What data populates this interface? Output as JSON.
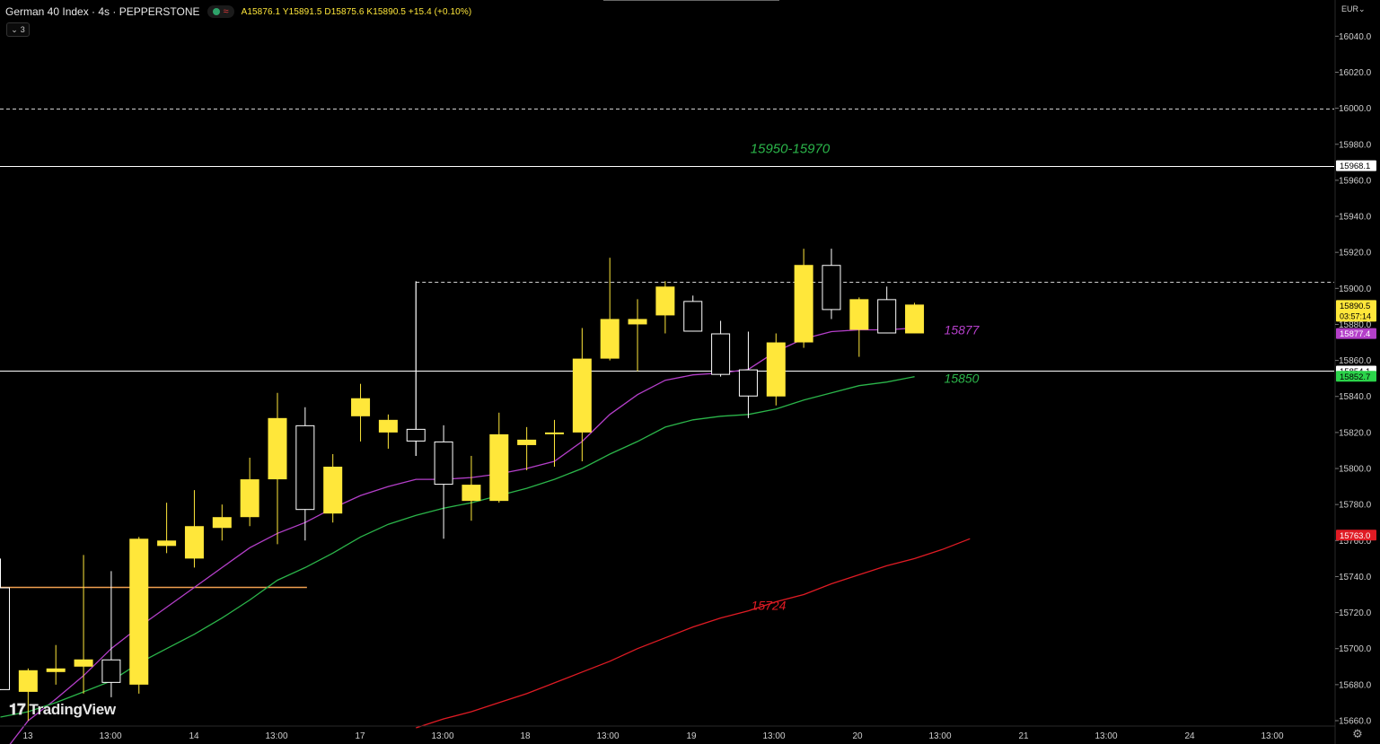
{
  "header": {
    "symbol": "German 40 Index · 4s · PEPPERSTONE",
    "ohlc": "A15876.1  Y15891.5  D15875.6  K15890.5  +15.4 (+0.10%)",
    "indicator_toggle": "3"
  },
  "currency": "EUR",
  "brand": "TradingView",
  "colors": {
    "background": "#000000",
    "bull": "#ffe73a",
    "bear_outline": "#ffffff",
    "ema_short": "#b43fc9",
    "ema_mid": "#2bb54a",
    "ema_long": "#e01b24",
    "level_line": "#ffffff",
    "orange_line": "#f0a050"
  },
  "chart_data": {
    "type": "candlestick",
    "y_axis": {
      "ticks": [
        15660,
        15680,
        15700,
        15720,
        15740,
        15760,
        15780,
        15800,
        15820,
        15840,
        15860,
        15880,
        15900,
        15920,
        15940,
        15960,
        15980,
        16000,
        16020,
        16040
      ],
      "ylim": [
        15656,
        16060
      ]
    },
    "x_axis": {
      "tick_labels": [
        "13",
        "13:00",
        "14",
        "13:00",
        "17",
        "13:00",
        "18",
        "13:00",
        "19",
        "13:00",
        "20",
        "13:00",
        "21",
        "13:00",
        "24",
        "13:00"
      ]
    },
    "candles": [
      {
        "o": 15734,
        "h": 15750,
        "l": 15677,
        "c": 15677
      },
      {
        "o": 15676,
        "h": 15689,
        "l": 15660,
        "c": 15688
      },
      {
        "o": 15687,
        "h": 15702,
        "l": 15680,
        "c": 15689
      },
      {
        "o": 15690,
        "h": 15752,
        "l": 15675,
        "c": 15694
      },
      {
        "o": 15694,
        "h": 15743,
        "l": 15673,
        "c": 15681
      },
      {
        "o": 15680,
        "h": 15762,
        "l": 15675,
        "c": 15761
      },
      {
        "o": 15757,
        "h": 15781,
        "l": 15753,
        "c": 15760
      },
      {
        "o": 15750,
        "h": 15788,
        "l": 15745,
        "c": 15768
      },
      {
        "o": 15767,
        "h": 15780,
        "l": 15760,
        "c": 15773
      },
      {
        "o": 15773,
        "h": 15806,
        "l": 15768,
        "c": 15794
      },
      {
        "o": 15794,
        "h": 15842,
        "l": 15758,
        "c": 15828
      },
      {
        "o": 15824,
        "h": 15834,
        "l": 15760,
        "c": 15777
      },
      {
        "o": 15775,
        "h": 15808,
        "l": 15770,
        "c": 15801
      },
      {
        "o": 15829,
        "h": 15847,
        "l": 15815,
        "c": 15839
      },
      {
        "o": 15820,
        "h": 15830,
        "l": 15811,
        "c": 15827
      },
      {
        "o": 15822,
        "h": 15904,
        "l": 15807,
        "c": 15815
      },
      {
        "o": 15815,
        "h": 15824,
        "l": 15761,
        "c": 15791
      },
      {
        "o": 15782,
        "h": 15807,
        "l": 15771,
        "c": 15791
      },
      {
        "o": 15782,
        "h": 15831,
        "l": 15781,
        "c": 15819
      },
      {
        "o": 15813,
        "h": 15823,
        "l": 15799,
        "c": 15816
      },
      {
        "o": 15820,
        "h": 15827,
        "l": 15801,
        "c": 15820
      },
      {
        "o": 15820,
        "h": 15878,
        "l": 15804,
        "c": 15861
      },
      {
        "o": 15861,
        "h": 15917,
        "l": 15860,
        "c": 15883
      },
      {
        "o": 15880,
        "h": 15894,
        "l": 15854,
        "c": 15883
      },
      {
        "o": 15885,
        "h": 15904,
        "l": 15875,
        "c": 15901
      },
      {
        "o": 15893,
        "h": 15896,
        "l": 15876,
        "c": 15876
      },
      {
        "o": 15875,
        "h": 15882,
        "l": 15851,
        "c": 15852
      },
      {
        "o": 15855,
        "h": 15876,
        "l": 15828,
        "c": 15840
      },
      {
        "o": 15840,
        "h": 15875,
        "l": 15835,
        "c": 15870
      },
      {
        "o": 15870,
        "h": 15922,
        "l": 15867,
        "c": 15913
      },
      {
        "o": 15913,
        "h": 15922,
        "l": 15883,
        "c": 15888
      },
      {
        "o": 15877,
        "h": 15895,
        "l": 15862,
        "c": 15894
      },
      {
        "o": 15894,
        "h": 15901,
        "l": 15875,
        "c": 15875
      },
      {
        "o": 15875,
        "h": 15892,
        "l": 15875,
        "c": 15891
      }
    ],
    "ema_short": [
      15640,
      15660,
      15672,
      15685,
      15700,
      15712,
      15723,
      15734,
      15745,
      15756,
      15764,
      15770,
      15778,
      15785,
      15790,
      15794,
      15794,
      15795,
      15797,
      15800,
      15804,
      15815,
      15830,
      15841,
      15849,
      15852,
      15853,
      15855,
      15865,
      15872,
      15876,
      15877,
      15877,
      15878
    ],
    "ema_mid": [
      15662,
      15665,
      15670,
      15676,
      15682,
      15692,
      15700,
      15708,
      15717,
      15727,
      15738,
      15745,
      15753,
      15762,
      15769,
      15774,
      15778,
      15781,
      15785,
      15789,
      15794,
      15800,
      15808,
      15815,
      15823,
      15827,
      15829,
      15830,
      15833,
      15838,
      15842,
      15846,
      15848,
      15851
    ],
    "ema_long_start_index": 15,
    "ema_long": [
      15656,
      15661,
      15665,
      15670,
      15675,
      15681,
      15687,
      15693,
      15700,
      15706,
      15712,
      15717,
      15721,
      15726,
      15730,
      15736,
      15741,
      15746,
      15750,
      15755,
      15761
    ],
    "levels": [
      {
        "price": 16000,
        "style": "dashed",
        "label": ""
      },
      {
        "price": 15968.1,
        "style": "solid",
        "label": "15950-15970",
        "label_color": "#2bb54a"
      },
      {
        "price": 15854.1,
        "style": "solid",
        "label": ""
      },
      {
        "price": 15903.5,
        "style": "dashed",
        "from_index": 15,
        "label": ""
      },
      {
        "price": 15734,
        "style": "orange",
        "from_index": 0,
        "to_index": 11,
        "label": ""
      }
    ],
    "annotations": [
      {
        "text": "15877",
        "color": "#b43fc9",
        "price": 15877
      },
      {
        "text": "15850",
        "color": "#2bb54a",
        "price": 15850
      },
      {
        "text": "15724",
        "color": "#e01b24",
        "price": 15724
      }
    ],
    "price_tags": [
      {
        "price": 15968.1,
        "text": "15968.1",
        "bg": "#ffffff",
        "fg": "#000000"
      },
      {
        "price": 15890.5,
        "text": "15890.5",
        "sub": "03:57:14",
        "bg": "#ffe73a",
        "fg": "#000000"
      },
      {
        "price": 15877.4,
        "text": "15877.4",
        "bg": "#b43fc9",
        "fg": "#ffffff"
      },
      {
        "price": 15854.1,
        "text": "15854.1",
        "bg": "#ffffff",
        "fg": "#000000"
      },
      {
        "price": 15852.7,
        "text": "15852.7",
        "bg": "#2bd34a",
        "fg": "#000000"
      },
      {
        "price": 15763.0,
        "text": "15763.0",
        "bg": "#e01b24",
        "fg": "#ffffff"
      }
    ]
  }
}
